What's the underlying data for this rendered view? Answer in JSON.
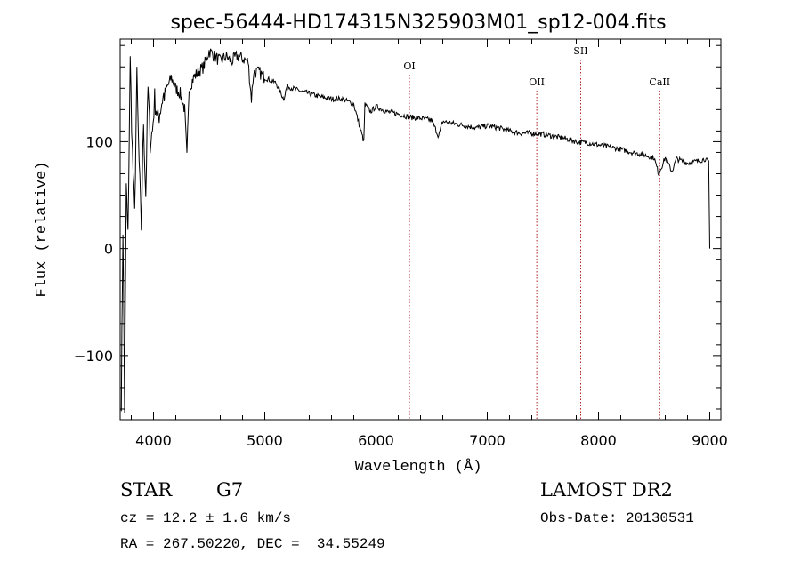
{
  "chart_data": {
    "type": "line",
    "title": "spec-56444-HD174315N325903M01_sp12-004.fits",
    "xlabel": "Wavelength (Å)",
    "ylabel": "Flux (relative)",
    "xlim": [
      3700,
      9100
    ],
    "ylim": [
      -160,
      196
    ],
    "x_ticks": [
      4000,
      5000,
      6000,
      7000,
      8000,
      9000
    ],
    "y_ticks": [
      -100,
      0,
      100
    ],
    "grid": false,
    "line_color": "#000000",
    "marker_color": "#b22222",
    "line_markers": [
      {
        "name": "OI",
        "x": 6300
      },
      {
        "name": "OII",
        "x": 7445
      },
      {
        "name": "SII",
        "x": 7840
      },
      {
        "name": "CaII",
        "x": 8550
      }
    ],
    "series": [
      {
        "x": [
          3710,
          3725,
          3740,
          3755,
          3770,
          3790,
          3810,
          3830,
          3850,
          3870,
          3890,
          3910,
          3930,
          3950,
          3970,
          3990,
          4010,
          4040,
          4080,
          4120,
          4160,
          4200,
          4240,
          4280,
          4300,
          4320,
          4360,
          4400,
          4450,
          4500,
          4550,
          4600,
          4650,
          4700,
          4750,
          4800,
          4850,
          4880,
          4900,
          4950,
          5000,
          5100,
          5170,
          5200,
          5300,
          5400,
          5500,
          5600,
          5700,
          5800,
          5890,
          5900,
          5950,
          6000,
          6100,
          6200,
          6300,
          6400,
          6500,
          6563,
          6600,
          6700,
          6800,
          6900,
          7000,
          7100,
          7200,
          7300,
          7400,
          7500,
          7600,
          7700,
          7800,
          7900,
          8000,
          8100,
          8200,
          8300,
          8400,
          8500,
          8540,
          8600,
          8660,
          8700,
          8800,
          8900,
          8960,
          8990,
          9000
        ],
        "y": [
          -140,
          20,
          -150,
          60,
          10,
          175,
          90,
          30,
          160,
          80,
          20,
          120,
          50,
          150,
          100,
          110,
          140,
          120,
          140,
          150,
          160,
          150,
          145,
          130,
          85,
          150,
          160,
          165,
          170,
          185,
          180,
          175,
          180,
          175,
          180,
          178,
          175,
          140,
          165,
          165,
          160,
          155,
          140,
          152,
          148,
          145,
          142,
          140,
          140,
          135,
          100,
          135,
          128,
          133,
          128,
          126,
          123,
          122,
          120,
          105,
          119,
          117,
          115,
          113,
          115,
          113,
          110,
          108,
          108,
          107,
          105,
          103,
          100,
          99,
          97,
          95,
          93,
          90,
          88,
          85,
          70,
          85,
          72,
          84,
          80,
          82,
          84,
          80,
          0
        ]
      }
    ]
  },
  "info": {
    "obj_type": "STAR",
    "subclass": "G7",
    "survey": "LAMOST DR2",
    "cz": "cz = 12.2 ± 1.6 km/s",
    "obs_date": "Obs-Date: 20130531",
    "coords": "RA = 267.50220, DEC =  34.55249"
  }
}
